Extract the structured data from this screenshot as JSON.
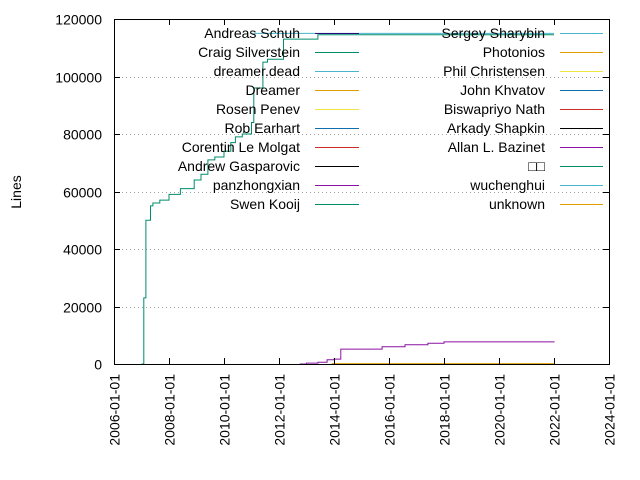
{
  "chart_data": {
    "type": "line",
    "title": "",
    "xlabel": "",
    "ylabel": "Lines",
    "xlim": [
      "2006-01-01",
      "2024-01-01"
    ],
    "ylim": [
      0,
      120000
    ],
    "x_ticks": [
      "2006-01-01",
      "2008-01-01",
      "2010-01-01",
      "2012-01-01",
      "2014-01-01",
      "2016-01-01",
      "2018-01-01",
      "2020-01-01",
      "2022-01-01",
      "2024-01-01"
    ],
    "y_ticks": [
      0,
      20000,
      40000,
      60000,
      80000,
      100000,
      120000
    ],
    "grid": "horizontal dotted",
    "legend_placement": "top, two columns",
    "series": [
      {
        "name": "Andreas Schuh",
        "color": "#2d0a7d",
        "x": [],
        "y": []
      },
      {
        "name": "Craig Silverstein",
        "color": "#008d6b",
        "x": [],
        "y": []
      },
      {
        "name": "dreamer.dead",
        "color": "#49b5cc",
        "x": [],
        "y": []
      },
      {
        "name": "Dreamer",
        "color": "#e1a000",
        "x": [],
        "y": []
      },
      {
        "name": "Rosen Penev",
        "color": "#efe440",
        "x": [],
        "y": []
      },
      {
        "name": "Rob Earhart",
        "color": "#0f6fae",
        "x": [],
        "y": []
      },
      {
        "name": "Corentin Le Molgat",
        "color": "#cd2b28",
        "x": [],
        "y": []
      },
      {
        "name": "Andrew Gasparovic",
        "color": "#000000",
        "x": [],
        "y": []
      },
      {
        "name": "panzhongxian",
        "color": "#8a12a4",
        "x": [
          "2012-10-01",
          "2013-01-01",
          "2013-06-01",
          "2013-10-01",
          "2014-01-01",
          "2014-04-01",
          "2015-10-01",
          "2016-08-01",
          "2017-06-01",
          "2018-01-01",
          "2022-01-01"
        ],
        "y": [
          0,
          300,
          600,
          1500,
          1700,
          5200,
          6000,
          6700,
          7200,
          7700,
          7900
        ]
      },
      {
        "name": "Swen Kooij",
        "color": "#008d6b",
        "x": [
          "2007-01-01",
          "2007-02-01",
          "2007-03-01",
          "2007-05-01",
          "2007-06-01",
          "2007-09-01",
          "2008-01-01",
          "2008-06-01",
          "2008-12-01",
          "2009-03-01",
          "2009-06-01",
          "2009-09-01",
          "2010-01-01",
          "2010-04-01",
          "2010-06-01",
          "2010-09-01",
          "2011-01-01",
          "2011-02-01",
          "2011-06-01",
          "2011-08-01",
          "2012-03-01",
          "2013-06-01",
          "2022-01-01"
        ],
        "y": [
          0,
          23000,
          50000,
          55000,
          56000,
          57000,
          59000,
          61000,
          64000,
          66000,
          71000,
          72000,
          74000,
          77000,
          79000,
          80000,
          84000,
          96000,
          105000,
          106000,
          113000,
          114500,
          114500
        ]
      },
      {
        "name": "Sergey Sharybin",
        "color": "#49b5cc",
        "x": [
          "2011-02-01",
          "2022-01-01"
        ],
        "y": [
          115000,
          115000
        ]
      },
      {
        "name": "Photonios",
        "color": "#e1a000",
        "x": [
          "2013-12-01",
          "2022-01-01"
        ],
        "y": [
          150,
          150
        ]
      },
      {
        "name": "Phil Christensen",
        "color": "#efe440",
        "x": [],
        "y": []
      },
      {
        "name": "John Khvatov",
        "color": "#0f6fae",
        "x": [],
        "y": []
      },
      {
        "name": "Biswapriyo Nath",
        "color": "#cd2b28",
        "x": [],
        "y": []
      },
      {
        "name": "Arkady Shapkin",
        "color": "#000000",
        "x": [],
        "y": []
      },
      {
        "name": "Allan L. Bazinet",
        "color": "#8a12a4",
        "x": [],
        "y": []
      },
      {
        "name": "□□",
        "color": "#008d6b",
        "x": [],
        "y": []
      },
      {
        "name": "wuchenghui",
        "color": "#49b5cc",
        "x": [],
        "y": []
      },
      {
        "name": "unknown",
        "color": "#e1a000",
        "x": [],
        "y": []
      }
    ]
  }
}
